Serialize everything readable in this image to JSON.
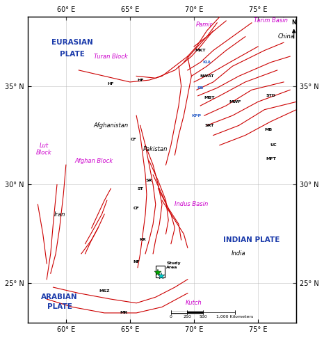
{
  "chart_data": {
    "type": "map",
    "xlim": [
      57,
      78
    ],
    "ylim": [
      23,
      38.5
    ],
    "xticks": [
      {
        "value": 60,
        "label": "60° E"
      },
      {
        "value": 65,
        "label": "65° E"
      },
      {
        "value": 70,
        "label": "70° E"
      },
      {
        "value": 75,
        "label": "75° E"
      }
    ],
    "yticks": [
      {
        "value": 25,
        "label": "25° N"
      },
      {
        "value": 30,
        "label": "30° N"
      },
      {
        "value": 35,
        "label": "35° N"
      }
    ],
    "grid": true,
    "faults": {
      "color": "#cc0000",
      "lines": [
        [
          [
            61.0,
            35.8
          ],
          [
            63.0,
            35.5
          ],
          [
            65.0,
            35.2
          ],
          [
            66.5,
            35.3
          ],
          [
            67.5,
            35.5
          ],
          [
            68.5,
            36.0
          ],
          [
            69.5,
            36.5
          ]
        ],
        [
          [
            65.5,
            35.5
          ],
          [
            67.0,
            35.4
          ],
          [
            68.5,
            35.8
          ],
          [
            69.8,
            36.5
          ],
          [
            70.5,
            37.0
          ],
          [
            71.5,
            37.8
          ]
        ],
        [
          [
            69.5,
            36.5
          ],
          [
            70.2,
            37.0
          ],
          [
            71.0,
            37.8
          ],
          [
            72.0,
            38.5
          ]
        ],
        [
          [
            70.0,
            37.0
          ],
          [
            71.0,
            37.5
          ],
          [
            71.8,
            38.2
          ]
        ],
        [
          [
            69.2,
            36.2
          ],
          [
            70.0,
            36.8
          ],
          [
            71.0,
            37.5
          ],
          [
            72.5,
            38.3
          ]
        ],
        [
          [
            69.5,
            35.8
          ],
          [
            70.5,
            36.2
          ],
          [
            71.5,
            36.8
          ],
          [
            73.0,
            37.5
          ],
          [
            74.5,
            38.2
          ]
        ],
        [
          [
            69.8,
            35.5
          ],
          [
            71.0,
            36.0
          ],
          [
            72.5,
            36.8
          ],
          [
            74.0,
            37.5
          ]
        ],
        [
          [
            70.0,
            35.2
          ],
          [
            71.2,
            35.6
          ],
          [
            72.8,
            36.2
          ],
          [
            75.0,
            37.0
          ]
        ],
        [
          [
            70.2,
            34.8
          ],
          [
            71.5,
            35.2
          ],
          [
            73.0,
            36.0
          ],
          [
            75.5,
            36.8
          ],
          [
            77.0,
            37.2
          ]
        ],
        [
          [
            70.3,
            34.5
          ],
          [
            71.8,
            34.9
          ],
          [
            73.5,
            35.5
          ],
          [
            76.0,
            36.2
          ],
          [
            77.5,
            36.5
          ]
        ],
        [
          [
            70.5,
            34.0
          ],
          [
            72.0,
            34.5
          ],
          [
            74.0,
            35.2
          ],
          [
            76.5,
            35.8
          ]
        ],
        [
          [
            70.8,
            33.5
          ],
          [
            72.5,
            34.0
          ],
          [
            74.5,
            34.8
          ],
          [
            77.0,
            35.2
          ]
        ],
        [
          [
            71.0,
            33.0
          ],
          [
            73.0,
            33.5
          ],
          [
            75.0,
            34.2
          ],
          [
            77.5,
            34.8
          ]
        ],
        [
          [
            71.5,
            32.5
          ],
          [
            73.5,
            33.0
          ],
          [
            75.5,
            33.8
          ],
          [
            78.0,
            34.2
          ]
        ],
        [
          [
            72.0,
            32.0
          ],
          [
            74.0,
            32.5
          ],
          [
            76.0,
            33.2
          ],
          [
            78.0,
            33.8
          ]
        ],
        [
          [
            69.5,
            36.5
          ],
          [
            69.8,
            35.5
          ],
          [
            69.5,
            34.5
          ],
          [
            69.2,
            33.5
          ],
          [
            68.8,
            32.5
          ],
          [
            68.5,
            31.5
          ]
        ],
        [
          [
            68.8,
            36.0
          ],
          [
            69.0,
            35.0
          ],
          [
            68.8,
            34.0
          ],
          [
            68.5,
            33.0
          ],
          [
            68.2,
            32.0
          ],
          [
            67.8,
            31.0
          ]
        ],
        [
          [
            65.5,
            33.5
          ],
          [
            65.8,
            32.5
          ],
          [
            66.0,
            31.5
          ],
          [
            66.2,
            30.5
          ],
          [
            66.3,
            29.5
          ],
          [
            66.2,
            28.5
          ],
          [
            66.0,
            27.5
          ],
          [
            65.8,
            26.5
          ],
          [
            65.6,
            25.8
          ]
        ],
        [
          [
            65.8,
            33.0
          ],
          [
            66.2,
            32.0
          ],
          [
            66.5,
            31.0
          ],
          [
            66.8,
            30.0
          ],
          [
            67.0,
            29.0
          ],
          [
            66.8,
            28.0
          ],
          [
            66.5,
            27.2
          ],
          [
            66.2,
            26.5
          ]
        ],
        [
          [
            66.2,
            32.0
          ],
          [
            66.8,
            31.0
          ],
          [
            67.2,
            30.0
          ],
          [
            67.5,
            29.0
          ],
          [
            67.3,
            28.0
          ],
          [
            67.0,
            27.2
          ],
          [
            66.8,
            26.5
          ]
        ],
        [
          [
            66.5,
            31.2
          ],
          [
            67.2,
            30.2
          ],
          [
            67.8,
            29.2
          ],
          [
            68.0,
            28.2
          ],
          [
            67.8,
            27.5
          ]
        ],
        [
          [
            66.8,
            30.5
          ],
          [
            67.5,
            29.5
          ],
          [
            68.2,
            28.5
          ],
          [
            68.5,
            27.8
          ],
          [
            68.2,
            27.0
          ]
        ],
        [
          [
            67.2,
            29.8
          ],
          [
            68.0,
            28.8
          ],
          [
            68.8,
            28.0
          ],
          [
            69.0,
            27.2
          ]
        ],
        [
          [
            67.5,
            29.2
          ],
          [
            68.5,
            28.2
          ],
          [
            69.2,
            27.5
          ],
          [
            69.5,
            26.8
          ]
        ],
        [
          [
            63.5,
            29.8
          ],
          [
            63.0,
            29.2
          ],
          [
            62.5,
            28.5
          ],
          [
            62.0,
            27.8
          ]
        ],
        [
          [
            63.2,
            29.2
          ],
          [
            62.8,
            28.5
          ],
          [
            62.2,
            27.8
          ],
          [
            61.5,
            27.0
          ]
        ],
        [
          [
            63.0,
            28.5
          ],
          [
            62.5,
            27.8
          ],
          [
            62.0,
            27.2
          ],
          [
            61.2,
            26.5
          ]
        ],
        [
          [
            62.5,
            27.8
          ],
          [
            62.0,
            27.2
          ],
          [
            61.5,
            26.5
          ]
        ],
        [
          [
            58.8,
            25.5
          ],
          [
            59.2,
            26.5
          ],
          [
            59.5,
            27.8
          ],
          [
            59.8,
            29.5
          ],
          [
            60.0,
            31.0
          ]
        ],
        [
          [
            58.5,
            25.2
          ],
          [
            58.8,
            26.5
          ],
          [
            59.0,
            28.0
          ],
          [
            59.3,
            30.0
          ]
        ],
        [
          [
            58.5,
            26.0
          ],
          [
            58.2,
            27.5
          ],
          [
            57.8,
            29.0
          ]
        ],
        [
          [
            59.0,
            24.8
          ],
          [
            61.0,
            24.5
          ],
          [
            63.5,
            24.2
          ],
          [
            65.5,
            24.0
          ],
          [
            67.0,
            24.3
          ],
          [
            68.5,
            24.8
          ],
          [
            69.5,
            25.2
          ]
        ],
        [
          [
            58.5,
            24.2
          ],
          [
            60.5,
            23.8
          ],
          [
            63.0,
            23.5
          ],
          [
            65.5,
            23.5
          ],
          [
            67.5,
            23.8
          ],
          [
            69.5,
            24.5
          ]
        ]
      ]
    },
    "plate_labels": [
      {
        "text": "EURASIAN",
        "x": 60.5,
        "y": 37.2,
        "color": "#1a3aaa"
      },
      {
        "text": "PLATE",
        "x": 60.5,
        "y": 36.6,
        "color": "#1a3aaa"
      },
      {
        "text": "ARABIAN",
        "x": 59.5,
        "y": 24.3,
        "color": "#1a3aaa"
      },
      {
        "text": "PLATE",
        "x": 59.5,
        "y": 23.8,
        "color": "#1a3aaa"
      },
      {
        "text": "INDIAN PLATE",
        "x": 74.5,
        "y": 27.2,
        "color": "#1a3aaa"
      }
    ],
    "block_labels": [
      {
        "text": "Turan Block",
        "x": 63.5,
        "y": 36.5,
        "color": "#cc00cc"
      },
      {
        "text": "Afghan Block",
        "x": 62.2,
        "y": 31.2,
        "color": "#cc00cc"
      },
      {
        "text": "Lut\nBlock",
        "x": 58.3,
        "y": 31.8,
        "color": "#cc00cc"
      },
      {
        "text": "Indus Basin",
        "x": 69.8,
        "y": 29.0,
        "color": "#cc00cc"
      },
      {
        "text": "Pamir",
        "x": 70.8,
        "y": 38.1,
        "color": "#cc00cc"
      },
      {
        "text": "Tarim Basin",
        "x": 76.0,
        "y": 38.3,
        "color": "#cc00cc"
      },
      {
        "text": "Kutch",
        "x": 70.0,
        "y": 24.0,
        "color": "#cc00cc"
      }
    ],
    "country_labels": [
      {
        "text": "Afghanistan",
        "x": 63.5,
        "y": 33.0,
        "color": "black"
      },
      {
        "text": "Iran",
        "x": 59.5,
        "y": 28.5,
        "color": "black"
      },
      {
        "text": "Pakistan",
        "x": 67.0,
        "y": 31.8,
        "color": "black"
      },
      {
        "text": "India",
        "x": 73.5,
        "y": 26.5,
        "color": "black"
      },
      {
        "text": "China",
        "x": 77.2,
        "y": 37.5,
        "color": "black"
      }
    ],
    "fault_labels": [
      {
        "text": "HF",
        "x": 63.5,
        "y": 35.1,
        "color": "black"
      },
      {
        "text": "HF",
        "x": 65.8,
        "y": 35.3,
        "color": "black"
      },
      {
        "text": "CF",
        "x": 65.3,
        "y": 32.3,
        "color": "black"
      },
      {
        "text": "CF",
        "x": 65.5,
        "y": 28.8,
        "color": "black"
      },
      {
        "text": "NF",
        "x": 65.5,
        "y": 26.1,
        "color": "black"
      },
      {
        "text": "KR",
        "x": 66.0,
        "y": 27.2,
        "color": "black"
      },
      {
        "text": "ST",
        "x": 65.8,
        "y": 29.8,
        "color": "black"
      },
      {
        "text": "SR",
        "x": 66.5,
        "y": 30.2,
        "color": "black"
      },
      {
        "text": "MKT",
        "x": 70.5,
        "y": 36.8,
        "color": "black"
      },
      {
        "text": "KIA",
        "x": 71.0,
        "y": 36.2,
        "color": "#3366cc"
      },
      {
        "text": "NWAT",
        "x": 71.0,
        "y": 35.5,
        "color": "black"
      },
      {
        "text": "PB",
        "x": 70.5,
        "y": 34.9,
        "color": "#3366cc"
      },
      {
        "text": "MBT",
        "x": 71.2,
        "y": 34.4,
        "color": "black"
      },
      {
        "text": "KPP",
        "x": 70.2,
        "y": 33.5,
        "color": "#3366cc"
      },
      {
        "text": "SRT",
        "x": 71.2,
        "y": 33.0,
        "color": "black"
      },
      {
        "text": "MWF",
        "x": 73.2,
        "y": 34.2,
        "color": "black"
      },
      {
        "text": "STD",
        "x": 76.0,
        "y": 34.5,
        "color": "black"
      },
      {
        "text": "MB",
        "x": 75.8,
        "y": 32.8,
        "color": "black"
      },
      {
        "text": "UC",
        "x": 76.2,
        "y": 32.0,
        "color": "black"
      },
      {
        "text": "MFT",
        "x": 76.0,
        "y": 31.3,
        "color": "black"
      },
      {
        "text": "MSZ",
        "x": 63.0,
        "y": 24.6,
        "color": "black"
      },
      {
        "text": "MR",
        "x": 64.5,
        "y": 23.5,
        "color": "black"
      }
    ],
    "study_area": {
      "x": 67.0,
      "y": 25.3,
      "width": 0.7,
      "height": 0.6,
      "label": "Study\nArea"
    },
    "markers": [
      {
        "x": 67.15,
        "y": 25.55,
        "color": "#00aa00",
        "marker": "star"
      },
      {
        "x": 67.45,
        "y": 25.35,
        "color": "#00cccc",
        "marker": "star"
      }
    ],
    "north_arrow": {
      "x": 77.8,
      "y": 38.0,
      "label": "N"
    },
    "scale_bar": {
      "y": 23.55,
      "ticks": [
        {
          "value": 68.2,
          "label": "0"
        },
        {
          "value": 69.45,
          "label": "250"
        },
        {
          "value": 70.7,
          "label": "500"
        },
        {
          "value": 73.2,
          "label": "1,000 Kilometers"
        }
      ]
    }
  }
}
